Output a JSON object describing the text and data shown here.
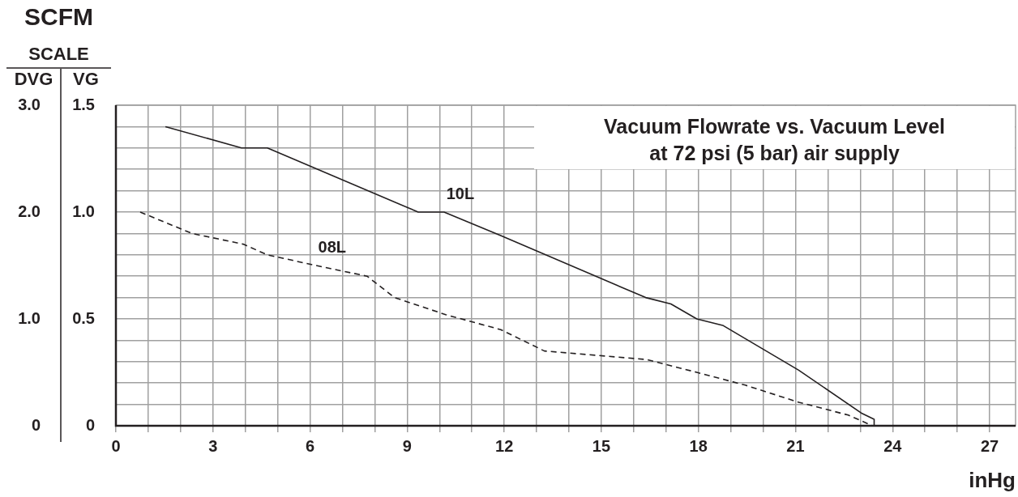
{
  "chart_data": {
    "type": "line",
    "title": "Vacuum Flowrate vs. Vacuum Level",
    "subtitle": "at 72 psi (5 bar) air supply",
    "xlabel": "inHg",
    "ylabel": "VG",
    "y2label": "DVG",
    "annotations": [
      "SCFM",
      "SCALE"
    ],
    "series": [
      {
        "name": "10L",
        "color": "#231f20",
        "line_style": "solid",
        "x": [
          1.53,
          3.88,
          4.68,
          9.34,
          10.14,
          11.89,
          16.37,
          17.15,
          17.95,
          18.75,
          21.1,
          23.03,
          23.43,
          23.43
        ],
        "values": [
          1.4,
          1.3,
          1.3,
          1.0,
          1.0,
          0.89,
          0.6,
          0.57,
          0.5,
          0.47,
          0.26,
          0.06,
          0.03,
          0
        ]
      },
      {
        "name": "08L",
        "color": "#231f20",
        "line_style": "dashed",
        "x": [
          0.75,
          2.35,
          3.93,
          4.68,
          6.18,
          7.76,
          8.61,
          10.19,
          11.89,
          13.24,
          16.4,
          17.95,
          19.45,
          21.1,
          22.63,
          23.38
        ],
        "values": [
          1.0,
          0.9,
          0.85,
          0.8,
          0.75,
          0.7,
          0.6,
          0.52,
          0.45,
          0.35,
          0.31,
          0.25,
          0.19,
          0.11,
          0.05,
          0
        ]
      }
    ],
    "xlim": [
      0,
      27.8
    ],
    "xticks": [
      0,
      {
        "value": 1,
        "label": null
      },
      {
        "value": 2,
        "label": null
      },
      3,
      {
        "value": 4,
        "label": null
      },
      {
        "value": 5,
        "label": null
      },
      6,
      {
        "value": 7,
        "label": null
      },
      {
        "value": 8,
        "label": null
      },
      9,
      {
        "value": 10,
        "label": null
      },
      {
        "value": 11,
        "label": null
      },
      12,
      {
        "value": 13,
        "label": null
      },
      {
        "value": 14,
        "label": null
      },
      15,
      {
        "value": 16,
        "label": null
      },
      {
        "value": 17,
        "label": null
      },
      18,
      {
        "value": 19,
        "label": null
      },
      {
        "value": 20,
        "label": null
      },
      21,
      {
        "value": 22,
        "label": null
      },
      {
        "value": 23,
        "label": null
      },
      24,
      {
        "value": 25,
        "label": null
      },
      {
        "value": 26,
        "label": null
      },
      27
    ],
    "ylim": [
      0,
      1.5
    ],
    "yticks": [
      0,
      {
        "value": 0.1,
        "label": null
      },
      {
        "value": 0.2,
        "label": null
      },
      {
        "value": 0.3,
        "label": null
      },
      {
        "value": 0.4,
        "label": null
      },
      0.5,
      {
        "value": 0.6,
        "label": null
      },
      {
        "value": 0.7,
        "label": null
      },
      {
        "value": 0.8,
        "label": null
      },
      {
        "value": 0.9,
        "label": null
      },
      {
        "value": 1,
        "label": "1.0"
      },
      {
        "value": 1.1,
        "label": null
      },
      {
        "value": 1.2,
        "label": null
      },
      {
        "value": 1.3,
        "label": null
      },
      {
        "value": 1.4,
        "label": null
      },
      1.5
    ],
    "y2lim": [
      0,
      3
    ],
    "y2ticks": [
      0,
      {
        "value": 1,
        "label": "1.0"
      },
      {
        "value": 2,
        "label": "2.0"
      },
      {
        "value": 3,
        "label": "3.0"
      }
    ],
    "grid": true,
    "legend": false,
    "marker": "none"
  }
}
